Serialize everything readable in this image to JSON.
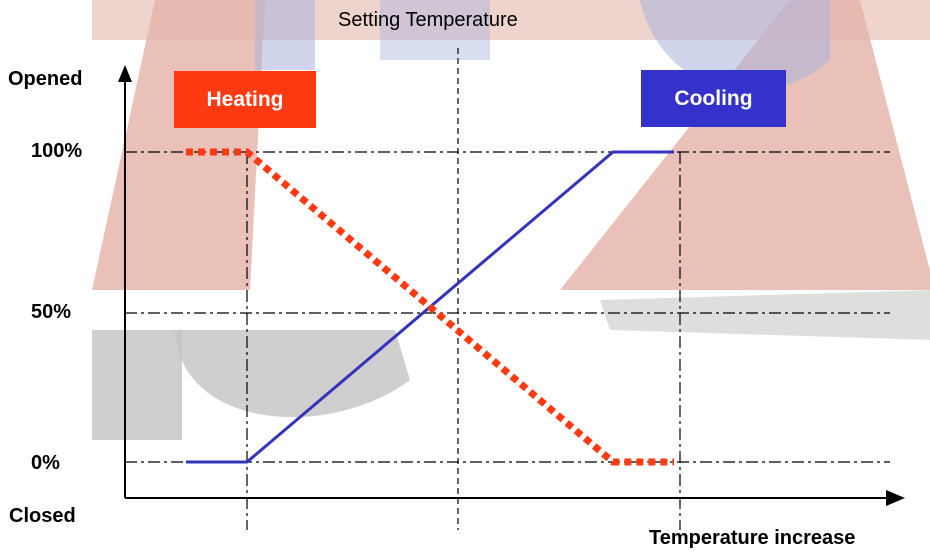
{
  "title": "Setting Temperature",
  "y_axis": {
    "top_label": "Opened",
    "bottom_label": "Closed",
    "ticks": [
      "100%",
      "50%",
      "0%"
    ]
  },
  "x_axis": {
    "label": "Temperature increase"
  },
  "legend": {
    "heating": {
      "label": "Heating",
      "color": "#ff3a12"
    },
    "cooling": {
      "label": "Cooling",
      "color": "#3333cc"
    }
  },
  "colors": {
    "heating_line": "#ff3a12",
    "cooling_line": "#3333bb",
    "watermark_red": "#e5b6ab",
    "watermark_blue": "#a9b3dd",
    "watermark_grey": "#c3c3c3"
  },
  "chart_data": {
    "type": "line",
    "title": "Setting Temperature",
    "xlabel": "Temperature increase",
    "ylabel": "Opened",
    "ylim": [
      0,
      100
    ],
    "series": [
      {
        "name": "Heating",
        "style": "dotted",
        "x": [
          0.1,
          0.2,
          0.8,
          0.9
        ],
        "values": [
          100,
          100,
          0,
          0
        ]
      },
      {
        "name": "Cooling",
        "style": "solid",
        "x": [
          0.1,
          0.2,
          0.8,
          0.9
        ],
        "values": [
          0,
          0,
          100,
          100
        ]
      }
    ]
  }
}
